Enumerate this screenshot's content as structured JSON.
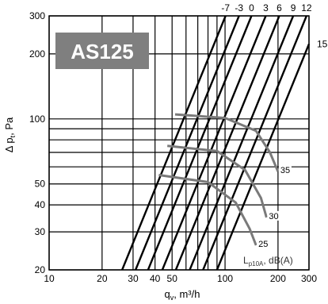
{
  "chart_data": {
    "type": "line",
    "badge": "AS125",
    "xlabel": "q",
    "xlabel_sub": "v",
    "xlabel_unit": ", m³/h",
    "ylabel": "Δ p",
    "ylabel_sub": "t",
    "ylabel_unit": ", Pa",
    "x_scale": "log",
    "y_scale": "log",
    "xlim": [
      10,
      300
    ],
    "ylim": [
      20,
      300
    ],
    "x_ticks": [
      10,
      20,
      30,
      40,
      50,
      100,
      200,
      300
    ],
    "y_ticks": [
      20,
      30,
      40,
      50,
      100,
      200,
      300
    ],
    "grid": true,
    "series": [
      {
        "name": "35",
        "x": [
          52,
          100,
          150,
          180,
          200
        ],
        "y": [
          105,
          101,
          88,
          70,
          57
        ]
      },
      {
        "name": "30",
        "x": [
          47,
          90,
          130,
          160,
          172
        ],
        "y": [
          75,
          71,
          58,
          43,
          35
        ]
      },
      {
        "name": "25",
        "x": [
          42,
          80,
          115,
          138,
          150
        ],
        "y": [
          55,
          51,
          41,
          31,
          26
        ]
      }
    ],
    "diagonal_labels": [
      "-7",
      "-3",
      "0",
      "3",
      "6",
      "9",
      "12",
      "15"
    ],
    "diagonal_start_x": [
      26,
      31,
      36.5,
      44,
      52.5,
      63,
      75,
      90
    ],
    "legend_label": "L",
    "legend_sub": "p10A",
    "legend_unit": ", dB(A)"
  }
}
